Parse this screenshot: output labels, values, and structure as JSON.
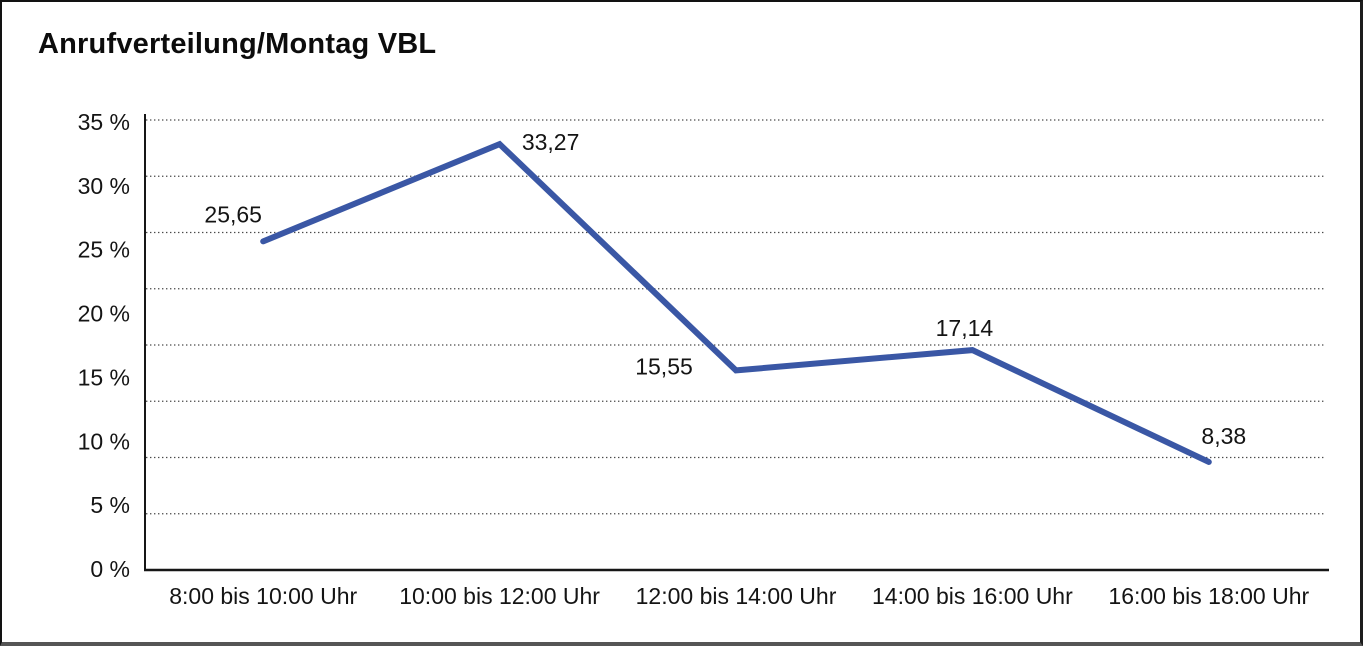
{
  "chart_data": {
    "type": "line",
    "title": "Anrufverteilung/Montag VBL",
    "categories": [
      "8:00 bis 10:00 Uhr",
      "10:00 bis 12:00 Uhr",
      "12:00 bis 14:00 Uhr",
      "14:00 bis 16:00 Uhr",
      "16:00 bis 18:00 Uhr"
    ],
    "series": [
      {
        "name": "Anrufverteilung Montag VBL",
        "values": [
          25.65,
          33.27,
          15.55,
          17.14,
          8.38
        ],
        "value_labels": [
          "25,65",
          "33,27",
          "15,55",
          "17,14",
          "8,38"
        ]
      }
    ],
    "xlabel": "",
    "ylabel": "",
    "ylim": [
      0,
      35
    ],
    "ytick_step": 5,
    "ytick_labels": [
      "35 %",
      "30 %",
      "25 %",
      "20 %",
      "15 %",
      "10 %",
      "5 %",
      "0 %"
    ],
    "grid": "horizontal-dotted",
    "legend": "none"
  },
  "colors": {
    "line": "#3a57a5",
    "axis": "#161616",
    "grid_dots": "#4a4a4a",
    "text": "#141414"
  }
}
